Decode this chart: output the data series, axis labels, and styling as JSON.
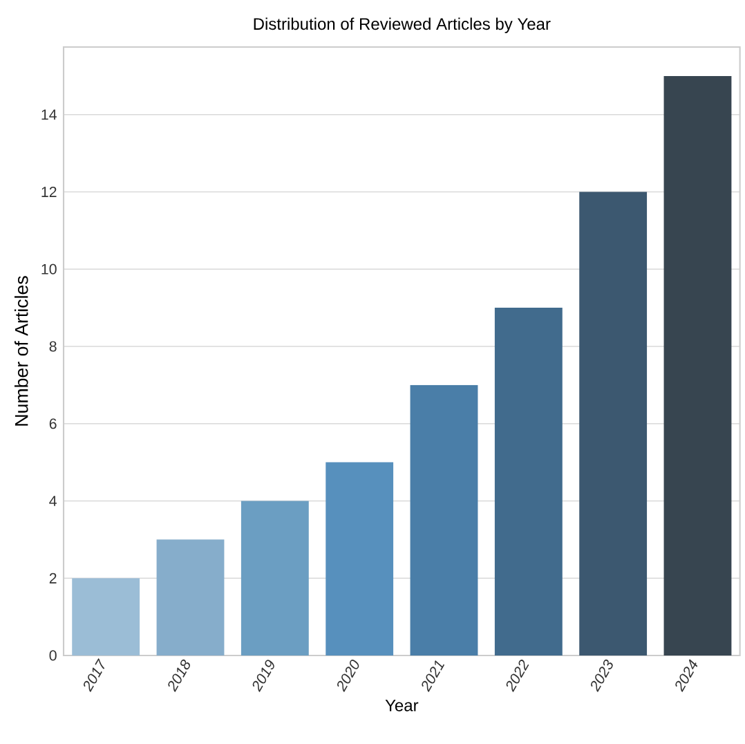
{
  "chart_data": {
    "type": "bar",
    "title": "Distribution of Reviewed Articles by Year",
    "xlabel": "Year",
    "ylabel": "Number of Articles",
    "categories": [
      "2017",
      "2018",
      "2019",
      "2020",
      "2021",
      "2022",
      "2023",
      "2024"
    ],
    "values": [
      2,
      3,
      4,
      5,
      7,
      9,
      12,
      15
    ],
    "colors": [
      "#9bbdd6",
      "#86adcb",
      "#6b9ec2",
      "#5790bd",
      "#4a7ea8",
      "#416b8d",
      "#3c5870",
      "#374550"
    ],
    "ylim": [
      0,
      15.75
    ],
    "yticks": [
      0,
      2,
      4,
      6,
      8,
      10,
      12,
      14
    ],
    "grid": "y"
  }
}
